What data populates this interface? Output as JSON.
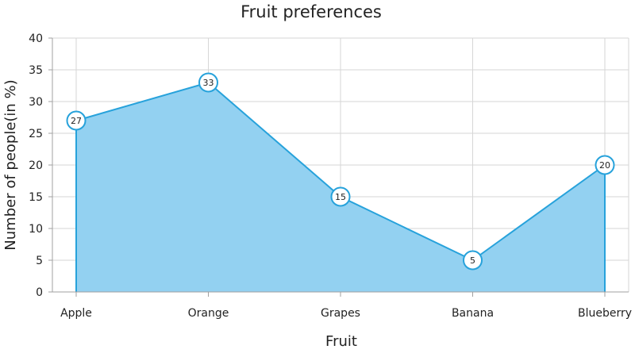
{
  "chart_data": {
    "type": "area",
    "title": "Fruit preferences",
    "xlabel": "Fruit",
    "ylabel": "Number of people(in %)",
    "categories": [
      "Apple",
      "Orange",
      "Grapes",
      "Banana",
      "Blueberry"
    ],
    "values": [
      27,
      33,
      15,
      5,
      20
    ],
    "ylim": [
      0,
      40
    ],
    "yticks": [
      0,
      5,
      10,
      15,
      20,
      25,
      30,
      35,
      40
    ],
    "grid": true,
    "legend": "none",
    "colors": {
      "fill": "#93d1f1",
      "line": "#27a2db",
      "marker_fill": "#ffffff",
      "grid": "#d6d6d6",
      "axis": "#a0a0a0",
      "text": "#222222"
    }
  }
}
